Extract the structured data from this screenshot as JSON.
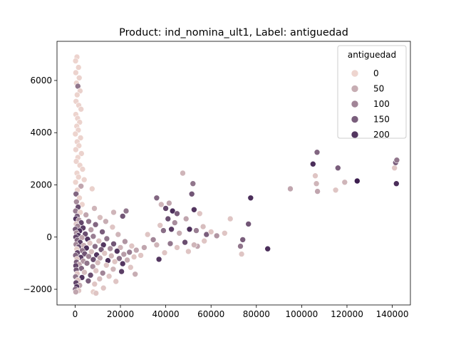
{
  "chart_data": {
    "type": "scatter",
    "title": "Product: ind_nomina_ult1, Label: antiguedad",
    "xlabel": "",
    "ylabel": "",
    "xlim": [
      -8000,
      148000
    ],
    "ylim": [
      -2600,
      7500
    ],
    "xticks": [
      0,
      20000,
      40000,
      60000,
      80000,
      100000,
      120000,
      140000
    ],
    "xtick_labels": [
      "0",
      "20000",
      "40000",
      "60000",
      "80000",
      "100000",
      "120000",
      "140000"
    ],
    "yticks": [
      -2000,
      0,
      2000,
      4000,
      6000
    ],
    "ytick_labels": [
      "−2000",
      "0",
      "2000",
      "4000",
      "6000"
    ],
    "grid": false,
    "legend": {
      "title": "antiguedad",
      "placement": "top-right",
      "entries": [
        {
          "label": "0",
          "value": 0
        },
        {
          "label": "50",
          "value": 50
        },
        {
          "label": "100",
          "value": 100
        },
        {
          "label": "150",
          "value": 150
        },
        {
          "label": "200",
          "value": 200
        }
      ]
    },
    "hue_range": [
      0,
      230
    ],
    "colors": {
      "low": "#eed5cf",
      "high": "#3c1e4f"
    },
    "points": [
      {
        "x": 800,
        "y": 6900,
        "hue": 2
      },
      {
        "x": 200,
        "y": 6750,
        "hue": 1
      },
      {
        "x": 1500,
        "y": 6500,
        "hue": 3
      },
      {
        "x": 300,
        "y": 6300,
        "hue": 2
      },
      {
        "x": 1800,
        "y": 6100,
        "hue": 4
      },
      {
        "x": 600,
        "y": 5900,
        "hue": 1
      },
      {
        "x": 1200,
        "y": 5780,
        "hue": 120
      },
      {
        "x": 2200,
        "y": 5600,
        "hue": 5
      },
      {
        "x": 900,
        "y": 5450,
        "hue": 3
      },
      {
        "x": 400,
        "y": 5200,
        "hue": 2
      },
      {
        "x": 1600,
        "y": 5050,
        "hue": 2
      },
      {
        "x": 2600,
        "y": 4900,
        "hue": 4
      },
      {
        "x": 300,
        "y": 4700,
        "hue": 1
      },
      {
        "x": 1100,
        "y": 4550,
        "hue": 2
      },
      {
        "x": 2000,
        "y": 4400,
        "hue": 3
      },
      {
        "x": 700,
        "y": 4250,
        "hue": 1
      },
      {
        "x": 1400,
        "y": 4100,
        "hue": 2
      },
      {
        "x": 100,
        "y": 3950,
        "hue": 1
      },
      {
        "x": 2400,
        "y": 3800,
        "hue": 3
      },
      {
        "x": 900,
        "y": 3650,
        "hue": 2
      },
      {
        "x": 1700,
        "y": 3500,
        "hue": 1
      },
      {
        "x": 300,
        "y": 3350,
        "hue": 2
      },
      {
        "x": 2800,
        "y": 3200,
        "hue": 4
      },
      {
        "x": 1200,
        "y": 3050,
        "hue": 1
      },
      {
        "x": 500,
        "y": 2900,
        "hue": 2
      },
      {
        "x": 2100,
        "y": 2750,
        "hue": 3
      },
      {
        "x": 3300,
        "y": 2600,
        "hue": 2
      },
      {
        "x": 800,
        "y": 2450,
        "hue": 1
      },
      {
        "x": 1500,
        "y": 2300,
        "hue": 3
      },
      {
        "x": 4000,
        "y": 2200,
        "hue": 2
      },
      {
        "x": 200,
        "y": 2100,
        "hue": 1
      },
      {
        "x": 2600,
        "y": 1950,
        "hue": 60
      },
      {
        "x": 7500,
        "y": 1850,
        "hue": 5
      },
      {
        "x": 1000,
        "y": 1800,
        "hue": 2
      },
      {
        "x": 400,
        "y": 1650,
        "hue": 140
      },
      {
        "x": 1900,
        "y": 1500,
        "hue": 3
      },
      {
        "x": 600,
        "y": 1350,
        "hue": 90
      },
      {
        "x": 3100,
        "y": 1250,
        "hue": 2
      },
      {
        "x": 1300,
        "y": 1150,
        "hue": 170
      },
      {
        "x": 8500,
        "y": 1100,
        "hue": 40
      },
      {
        "x": 200,
        "y": 1000,
        "hue": 110
      },
      {
        "x": 2300,
        "y": 950,
        "hue": 3
      },
      {
        "x": 4800,
        "y": 850,
        "hue": 60
      },
      {
        "x": 900,
        "y": 800,
        "hue": 150
      },
      {
        "x": 11000,
        "y": 750,
        "hue": 30
      },
      {
        "x": 300,
        "y": 700,
        "hue": 200
      },
      {
        "x": 1700,
        "y": 650,
        "hue": 80
      },
      {
        "x": 6000,
        "y": 600,
        "hue": 120
      },
      {
        "x": 13500,
        "y": 600,
        "hue": 50
      },
      {
        "x": 2700,
        "y": 550,
        "hue": 180
      },
      {
        "x": 500,
        "y": 500,
        "hue": 20
      },
      {
        "x": 9000,
        "y": 480,
        "hue": 140
      },
      {
        "x": 1100,
        "y": 420,
        "hue": 100
      },
      {
        "x": 16500,
        "y": 380,
        "hue": 20
      },
      {
        "x": 3500,
        "y": 350,
        "hue": 190
      },
      {
        "x": 100,
        "y": 300,
        "hue": 160
      },
      {
        "x": 7000,
        "y": 280,
        "hue": 70
      },
      {
        "x": 2000,
        "y": 240,
        "hue": 210
      },
      {
        "x": 12000,
        "y": 200,
        "hue": 150
      },
      {
        "x": 600,
        "y": 160,
        "hue": 90
      },
      {
        "x": 4500,
        "y": 120,
        "hue": 170
      },
      {
        "x": 19000,
        "y": 100,
        "hue": 40
      },
      {
        "x": 1400,
        "y": 60,
        "hue": 200
      },
      {
        "x": 8000,
        "y": 30,
        "hue": 110
      },
      {
        "x": 300,
        "y": 0,
        "hue": 180
      },
      {
        "x": 3000,
        "y": -20,
        "hue": 60
      },
      {
        "x": 14000,
        "y": -60,
        "hue": 120
      },
      {
        "x": 5500,
        "y": -80,
        "hue": 200
      },
      {
        "x": 900,
        "y": -120,
        "hue": 140
      },
      {
        "x": 10500,
        "y": -150,
        "hue": 30
      },
      {
        "x": 22000,
        "y": -170,
        "hue": 80
      },
      {
        "x": 2200,
        "y": -200,
        "hue": 190
      },
      {
        "x": 6500,
        "y": -230,
        "hue": 20
      },
      {
        "x": 17000,
        "y": -260,
        "hue": 160
      },
      {
        "x": 400,
        "y": -280,
        "hue": 100
      },
      {
        "x": 12500,
        "y": -300,
        "hue": 200
      },
      {
        "x": 3800,
        "y": -320,
        "hue": 50
      },
      {
        "x": 25000,
        "y": -340,
        "hue": 20
      },
      {
        "x": 8800,
        "y": -360,
        "hue": 130
      },
      {
        "x": 1500,
        "y": -380,
        "hue": 170
      },
      {
        "x": 20000,
        "y": -400,
        "hue": 40
      },
      {
        "x": 5000,
        "y": -420,
        "hue": 210
      },
      {
        "x": 15500,
        "y": -440,
        "hue": 90
      },
      {
        "x": 700,
        "y": -460,
        "hue": 10
      },
      {
        "x": 11500,
        "y": -480,
        "hue": 150
      },
      {
        "x": 27000,
        "y": -500,
        "hue": 60
      },
      {
        "x": 3200,
        "y": -520,
        "hue": 120
      },
      {
        "x": 18500,
        "y": -540,
        "hue": 200
      },
      {
        "x": 7200,
        "y": -560,
        "hue": 30
      },
      {
        "x": 24000,
        "y": -580,
        "hue": 110
      },
      {
        "x": 1000,
        "y": -600,
        "hue": 180
      },
      {
        "x": 13000,
        "y": -620,
        "hue": 20
      },
      {
        "x": 4200,
        "y": -640,
        "hue": 160
      },
      {
        "x": 21500,
        "y": -660,
        "hue": 70
      },
      {
        "x": 9500,
        "y": -680,
        "hue": 200
      },
      {
        "x": 200,
        "y": -700,
        "hue": 140
      },
      {
        "x": 16000,
        "y": -720,
        "hue": 40
      },
      {
        "x": 6000,
        "y": -740,
        "hue": 100
      },
      {
        "x": 26000,
        "y": -760,
        "hue": 20
      },
      {
        "x": 2500,
        "y": -780,
        "hue": 190
      },
      {
        "x": 11000,
        "y": -800,
        "hue": 60
      },
      {
        "x": 19500,
        "y": -820,
        "hue": 130
      },
      {
        "x": 800,
        "y": -840,
        "hue": 20
      },
      {
        "x": 8000,
        "y": -860,
        "hue": 170
      },
      {
        "x": 23000,
        "y": -880,
        "hue": 50
      },
      {
        "x": 14500,
        "y": -900,
        "hue": 210
      },
      {
        "x": 3600,
        "y": -920,
        "hue": 80
      },
      {
        "x": 17500,
        "y": -940,
        "hue": 20
      },
      {
        "x": 600,
        "y": -960,
        "hue": 150
      },
      {
        "x": 10000,
        "y": -980,
        "hue": 30
      },
      {
        "x": 5200,
        "y": -1000,
        "hue": 120
      },
      {
        "x": 21000,
        "y": -1020,
        "hue": 200
      },
      {
        "x": 1800,
        "y": -1050,
        "hue": 60
      },
      {
        "x": 13800,
        "y": -1080,
        "hue": 20
      },
      {
        "x": 300,
        "y": -1100,
        "hue": 180
      },
      {
        "x": 7800,
        "y": -1130,
        "hue": 90
      },
      {
        "x": 24500,
        "y": -1160,
        "hue": 20
      },
      {
        "x": 2800,
        "y": -1200,
        "hue": 140
      },
      {
        "x": 16800,
        "y": -1230,
        "hue": 40
      },
      {
        "x": 500,
        "y": -1260,
        "hue": 160
      },
      {
        "x": 9200,
        "y": -1290,
        "hue": 20
      },
      {
        "x": 20500,
        "y": -1320,
        "hue": 190
      },
      {
        "x": 4100,
        "y": -1350,
        "hue": 30
      },
      {
        "x": 12200,
        "y": -1380,
        "hue": 100
      },
      {
        "x": 900,
        "y": -1400,
        "hue": 20
      },
      {
        "x": 26500,
        "y": -1420,
        "hue": 50
      },
      {
        "x": 6800,
        "y": -1460,
        "hue": 170
      },
      {
        "x": 15000,
        "y": -1500,
        "hue": 20
      },
      {
        "x": 200,
        "y": -1520,
        "hue": 120
      },
      {
        "x": 3000,
        "y": -1550,
        "hue": 200
      },
      {
        "x": 10800,
        "y": -1600,
        "hue": 30
      },
      {
        "x": 1200,
        "y": -1650,
        "hue": 20
      },
      {
        "x": 5800,
        "y": -1680,
        "hue": 150
      },
      {
        "x": 18000,
        "y": -1700,
        "hue": 20
      },
      {
        "x": 400,
        "y": -1750,
        "hue": 180
      },
      {
        "x": 8600,
        "y": -1800,
        "hue": 20
      },
      {
        "x": 2000,
        "y": -1850,
        "hue": 60
      },
      {
        "x": 700,
        "y": -1900,
        "hue": 200
      },
      {
        "x": 12500,
        "y": -1950,
        "hue": 20
      },
      {
        "x": 100,
        "y": -2000,
        "hue": 140
      },
      {
        "x": 1600,
        "y": -2050,
        "hue": 20
      },
      {
        "x": 8000,
        "y": -2100,
        "hue": 10
      },
      {
        "x": 9200,
        "y": -2150,
        "hue": 20
      },
      {
        "x": 300,
        "y": -2100,
        "hue": 60
      },
      {
        "x": 22500,
        "y": 1000,
        "hue": 120
      },
      {
        "x": 21000,
        "y": 800,
        "hue": 160
      },
      {
        "x": 17000,
        "y": 950,
        "hue": 40
      },
      {
        "x": 36000,
        "y": 1500,
        "hue": 140
      },
      {
        "x": 38000,
        "y": 1250,
        "hue": 40
      },
      {
        "x": 40000,
        "y": 1100,
        "hue": 180
      },
      {
        "x": 41500,
        "y": 1300,
        "hue": 60
      },
      {
        "x": 43000,
        "y": 1000,
        "hue": 210
      },
      {
        "x": 45000,
        "y": 900,
        "hue": 150
      },
      {
        "x": 47500,
        "y": 2450,
        "hue": 40
      },
      {
        "x": 52000,
        "y": 2050,
        "hue": 120
      },
      {
        "x": 51500,
        "y": 1650,
        "hue": 160
      },
      {
        "x": 49000,
        "y": 700,
        "hue": 60
      },
      {
        "x": 52500,
        "y": 1050,
        "hue": 200
      },
      {
        "x": 55000,
        "y": 900,
        "hue": 20
      },
      {
        "x": 44000,
        "y": 550,
        "hue": 90
      },
      {
        "x": 41000,
        "y": 700,
        "hue": 170
      },
      {
        "x": 37500,
        "y": 450,
        "hue": 20
      },
      {
        "x": 39000,
        "y": 250,
        "hue": 130
      },
      {
        "x": 42500,
        "y": 300,
        "hue": 190
      },
      {
        "x": 46000,
        "y": 150,
        "hue": 50
      },
      {
        "x": 50500,
        "y": 300,
        "hue": 210
      },
      {
        "x": 53500,
        "y": 250,
        "hue": 110
      },
      {
        "x": 56500,
        "y": 400,
        "hue": 30
      },
      {
        "x": 58000,
        "y": 100,
        "hue": 150
      },
      {
        "x": 60000,
        "y": 200,
        "hue": 20
      },
      {
        "x": 62500,
        "y": 50,
        "hue": 80
      },
      {
        "x": 57000,
        "y": -150,
        "hue": 20
      },
      {
        "x": 54000,
        "y": -350,
        "hue": 60
      },
      {
        "x": 48500,
        "y": -200,
        "hue": 170
      },
      {
        "x": 45000,
        "y": -400,
        "hue": 20
      },
      {
        "x": 42000,
        "y": -250,
        "hue": 120
      },
      {
        "x": 39500,
        "y": -600,
        "hue": 20
      },
      {
        "x": 37000,
        "y": -850,
        "hue": 200
      },
      {
        "x": 36000,
        "y": -300,
        "hue": 40
      },
      {
        "x": 34500,
        "y": -100,
        "hue": 100
      },
      {
        "x": 32000,
        "y": 100,
        "hue": 20
      },
      {
        "x": 30500,
        "y": -400,
        "hue": 60
      },
      {
        "x": 29000,
        "y": -700,
        "hue": 20
      },
      {
        "x": 50000,
        "y": -550,
        "hue": 20
      },
      {
        "x": 52500,
        "y": -300,
        "hue": 40
      },
      {
        "x": 66000,
        "y": 150,
        "hue": 20
      },
      {
        "x": 68500,
        "y": 700,
        "hue": 20
      },
      {
        "x": 73500,
        "y": -650,
        "hue": 20
      },
      {
        "x": 74000,
        "y": -100,
        "hue": 150
      },
      {
        "x": 73000,
        "y": -350,
        "hue": 120
      },
      {
        "x": 76500,
        "y": 500,
        "hue": 160
      },
      {
        "x": 77500,
        "y": 1500,
        "hue": 210
      },
      {
        "x": 85000,
        "y": -450,
        "hue": 210
      },
      {
        "x": 95000,
        "y": 1850,
        "hue": 60
      },
      {
        "x": 105000,
        "y": 2800,
        "hue": 210
      },
      {
        "x": 106000,
        "y": 2350,
        "hue": 20
      },
      {
        "x": 106500,
        "y": 2050,
        "hue": 40
      },
      {
        "x": 107000,
        "y": 1750,
        "hue": 60
      },
      {
        "x": 106800,
        "y": 3250,
        "hue": 140
      },
      {
        "x": 115000,
        "y": 1800,
        "hue": 20
      },
      {
        "x": 116000,
        "y": 2650,
        "hue": 150
      },
      {
        "x": 119000,
        "y": 2100,
        "hue": 40
      },
      {
        "x": 124500,
        "y": 2150,
        "hue": 230
      },
      {
        "x": 141000,
        "y": 2650,
        "hue": 20
      },
      {
        "x": 141500,
        "y": 2850,
        "hue": 150
      },
      {
        "x": 142000,
        "y": 2950,
        "hue": 120
      },
      {
        "x": 141800,
        "y": 2050,
        "hue": 210
      }
    ]
  }
}
